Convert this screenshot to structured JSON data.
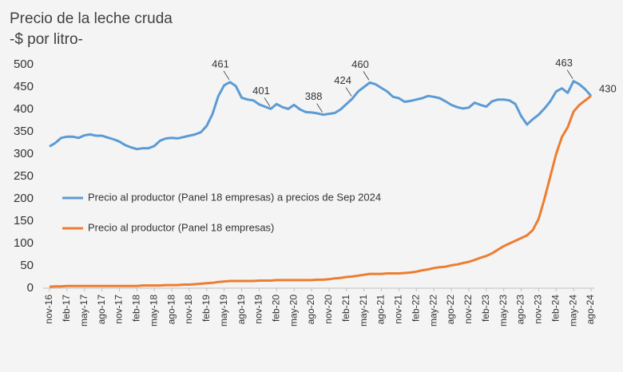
{
  "chart_data": {
    "type": "line",
    "title": [
      "Precio de la leche cruda",
      "-$ por litro-"
    ],
    "categories": [
      "nov-16",
      null,
      null,
      "feb-17",
      null,
      null,
      "may-17",
      null,
      null,
      "ago-17",
      null,
      null,
      "nov-17",
      null,
      null,
      "feb-18",
      null,
      null,
      "may-18",
      null,
      null,
      "ago-18",
      null,
      null,
      "nov-18",
      null,
      null,
      "feb-19",
      null,
      null,
      "may-19",
      null,
      null,
      "ago-19",
      null,
      null,
      "nov-19",
      null,
      null,
      "feb-20",
      null,
      null,
      "may-20",
      null,
      null,
      "ago-20",
      null,
      null,
      "nov-20",
      null,
      null,
      "feb-21",
      null,
      null,
      "may-21",
      null,
      null,
      "ago-21",
      null,
      null,
      "nov-21",
      null,
      null,
      "feb-22",
      null,
      null,
      "may-22",
      null,
      null,
      "ago-22",
      null,
      null,
      "nov-22",
      null,
      null,
      "feb-23",
      null,
      null,
      "may-23",
      null,
      null,
      "ago-23",
      null,
      null,
      "nov-23",
      null,
      null,
      "feb-24",
      null,
      null,
      "may-24",
      null,
      null,
      "ago-24"
    ],
    "series": [
      {
        "name": "Precio al productor (Panel 18 empresas) a precios de Sep 2024",
        "color": "#5b9bd5",
        "values": [
          317,
          325,
          336,
          339,
          339,
          336,
          342,
          344,
          341,
          341,
          337,
          333,
          328,
          320,
          315,
          311,
          313,
          313,
          318,
          330,
          335,
          336,
          335,
          338,
          341,
          344,
          349,
          363,
          390,
          430,
          454,
          461,
          452,
          426,
          422,
          420,
          411,
          406,
          401,
          412,
          405,
          401,
          410,
          400,
          394,
          393,
          391,
          388,
          390,
          392,
          400,
          412,
          424,
          440,
          450,
          460,
          456,
          448,
          440,
          428,
          425,
          417,
          419,
          422,
          425,
          430,
          428,
          425,
          418,
          410,
          405,
          402,
          404,
          415,
          410,
          406,
          418,
          422,
          422,
          420,
          412,
          385,
          366,
          378,
          388,
          402,
          418,
          440,
          447,
          437,
          463,
          456,
          445,
          430
        ],
        "value_labels": [
          null,
          null,
          null,
          null,
          null,
          null,
          null,
          null,
          null,
          null,
          null,
          null,
          null,
          null,
          null,
          null,
          null,
          null,
          null,
          null,
          null,
          null,
          null,
          null,
          null,
          null,
          null,
          null,
          null,
          null,
          null,
          "461",
          null,
          null,
          null,
          null,
          null,
          null,
          "401",
          null,
          null,
          null,
          null,
          null,
          null,
          null,
          null,
          "388",
          null,
          null,
          null,
          null,
          "424",
          null,
          null,
          "460",
          null,
          null,
          null,
          null,
          null,
          null,
          null,
          null,
          null,
          null,
          null,
          null,
          null,
          null,
          null,
          null,
          null,
          null,
          null,
          null,
          null,
          null,
          null,
          null,
          null,
          null,
          null,
          null,
          null,
          null,
          null,
          null,
          null,
          null,
          "463",
          null,
          null,
          "430"
        ]
      },
      {
        "name": "Precio al productor (Panel 18 empresas)",
        "color": "#ed7d31",
        "values": [
          3,
          4,
          4,
          5,
          5,
          5,
          5,
          5,
          5,
          5,
          5,
          5,
          5,
          5,
          5,
          5,
          6,
          6,
          6,
          6,
          7,
          7,
          7,
          8,
          8,
          9,
          10,
          11,
          12,
          14,
          15,
          16,
          16,
          16,
          16,
          16,
          17,
          17,
          17,
          18,
          18,
          18,
          18,
          18,
          18,
          18,
          19,
          19,
          20,
          22,
          23,
          25,
          26,
          28,
          30,
          32,
          32,
          32,
          33,
          33,
          33,
          34,
          35,
          37,
          40,
          42,
          45,
          47,
          48,
          51,
          53,
          56,
          59,
          63,
          68,
          72,
          78,
          86,
          94,
          100,
          106,
          112,
          118,
          130,
          155,
          200,
          250,
          300,
          338,
          360,
          395,
          410,
          420,
          430
        ]
      }
    ],
    "ylim": [
      0,
      500
    ],
    "yticks": [
      0,
      50,
      100,
      150,
      200,
      250,
      300,
      350,
      400,
      450,
      500
    ]
  }
}
